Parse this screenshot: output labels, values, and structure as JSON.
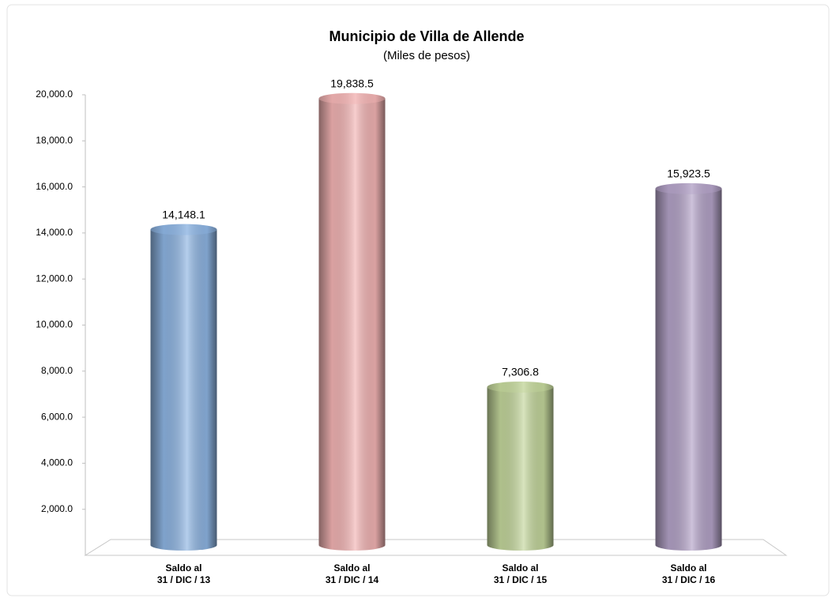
{
  "chart_data": {
    "type": "bar",
    "title": "Municipio de Villa de Allende",
    "subtitle": "(Miles de pesos)",
    "categories": [
      [
        "Saldo al",
        "31 / DIC / 13"
      ],
      [
        "Saldo al",
        "31 / DIC / 14"
      ],
      [
        "Saldo al",
        "31 / DIC / 15"
      ],
      [
        "Saldo al",
        "31 / DIC / 16"
      ]
    ],
    "values": [
      14148.1,
      19838.5,
      7306.8,
      15923.5
    ],
    "value_labels": [
      "14,148.1",
      "19,838.5",
      "7,306.8",
      "15,923.5"
    ],
    "colors": [
      "#8db4e2",
      "#f2b3b3",
      "#c3d69b",
      "#b3a2c7"
    ],
    "ylim": [
      0,
      20000
    ],
    "yticks": [
      {
        "value": 2000,
        "label": "2,000.0"
      },
      {
        "value": 4000,
        "label": "4,000.0"
      },
      {
        "value": 6000,
        "label": "6,000.0"
      },
      {
        "value": 8000,
        "label": "8,000.0"
      },
      {
        "value": 10000,
        "label": "10,000.0"
      },
      {
        "value": 12000,
        "label": "12,000.0"
      },
      {
        "value": 14000,
        "label": "14,000.0"
      },
      {
        "value": 16000,
        "label": "16,000.0"
      },
      {
        "value": 18000,
        "label": "18,000.0"
      },
      {
        "value": 20000,
        "label": "20,000.0"
      }
    ],
    "grid": false
  }
}
